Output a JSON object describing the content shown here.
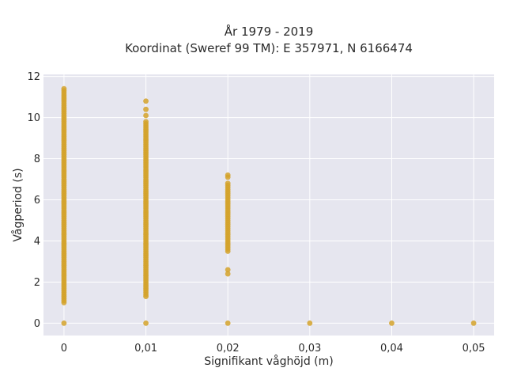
{
  "chart_data": {
    "type": "scatter",
    "title": [
      "År 1979 - 2019",
      "Koordinat (Sweref 99 TM): E 357971, N 6166474"
    ],
    "xlabel": "Signifikant våghöjd (m)",
    "ylabel": "Vågperiod (s)",
    "xlim": [
      -0.0025,
      0.0525
    ],
    "ylim": [
      -0.6,
      12.1
    ],
    "x_ticks": [
      0,
      0.01,
      0.02,
      0.03,
      0.04,
      0.05
    ],
    "x_tick_labels": [
      "0",
      "0,01",
      "0,02",
      "0,03",
      "0,04",
      "0,05"
    ],
    "y_ticks": [
      0,
      2,
      4,
      6,
      8,
      10,
      12
    ],
    "y_tick_labels": [
      "0",
      "2",
      "4",
      "6",
      "8",
      "10",
      "12"
    ],
    "grid": true,
    "legend": "none",
    "colors": {
      "marker": "#d4a22a",
      "plot_bg": "#e6e6ef",
      "grid": "#ffffff"
    },
    "series": [
      {
        "columns": [
          {
            "x": 0,
            "y_min": 1.0,
            "y_max": 11.4,
            "outliers": [
              0
            ]
          },
          {
            "x": 0.01,
            "y_min": 1.3,
            "y_max": 9.8,
            "outliers": [
              0,
              10.1,
              10.4,
              10.8
            ]
          },
          {
            "x": 0.02,
            "y_min": 3.5,
            "y_max": 6.8,
            "outliers": [
              0,
              2.4,
              2.6,
              7.1,
              7.2
            ]
          },
          {
            "x": 0.03,
            "y_min": null,
            "y_max": null,
            "outliers": [
              0
            ]
          },
          {
            "x": 0.04,
            "y_min": null,
            "y_max": null,
            "outliers": [
              0
            ]
          },
          {
            "x": 0.05,
            "y_min": null,
            "y_max": null,
            "outliers": [
              0
            ]
          }
        ]
      }
    ]
  }
}
